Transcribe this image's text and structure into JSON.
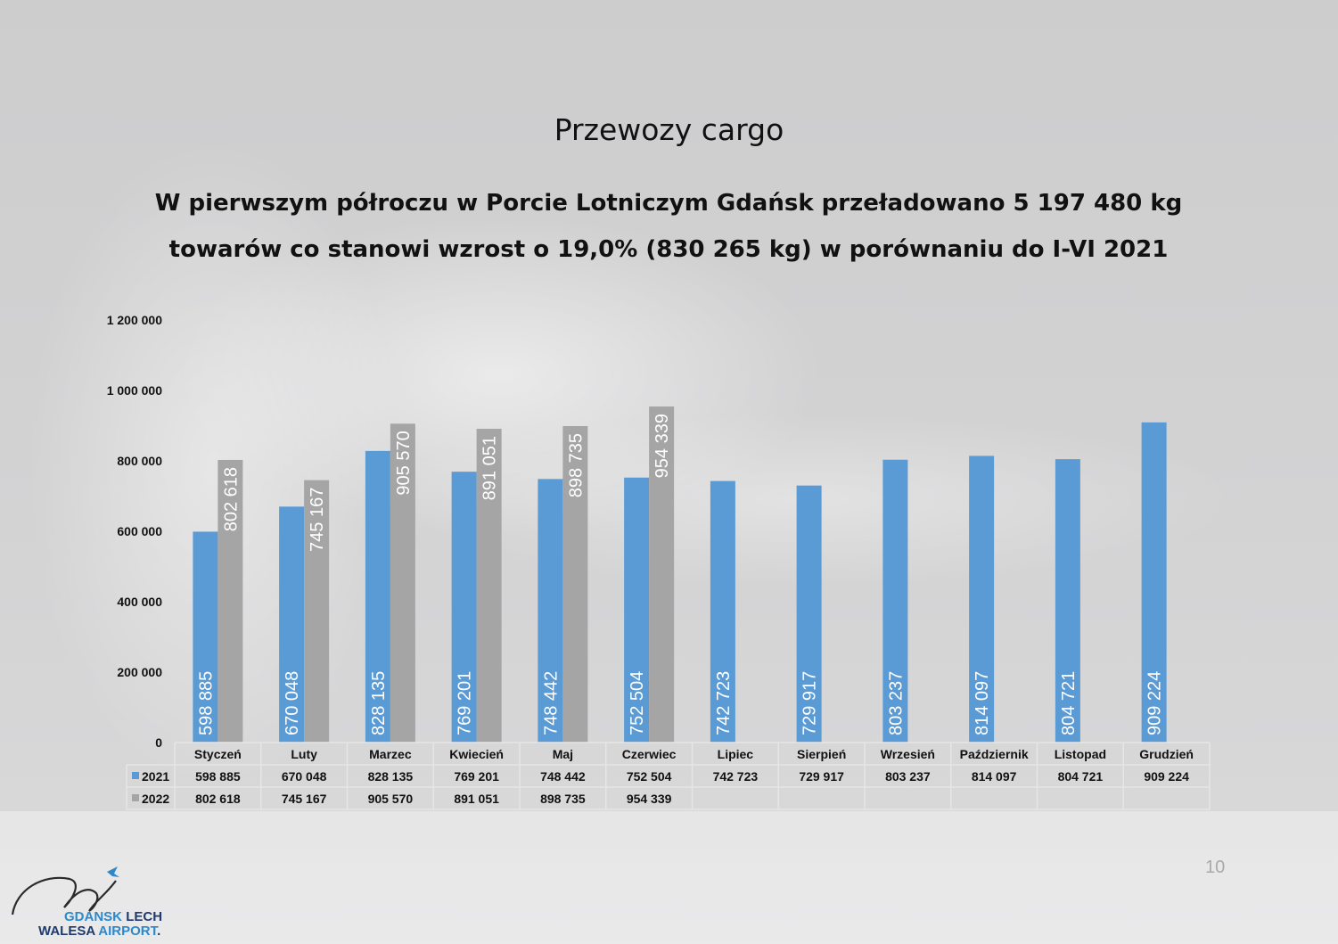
{
  "title": "Przewozy cargo",
  "subtitle": "W pierwszym półroczu w Porcie Lotniczym Gdańsk przeładowano 5 197 480 kg towarów co stanowi wzrost o 19,0% (830 265 kg) w porównaniu do I-VI 2021",
  "page_number": "10",
  "logo": {
    "word1": "GDANSK",
    "word2": "LECH",
    "word3": "WALESA",
    "word4": "AIRPORT",
    "word4_suffix": "."
  },
  "colors": {
    "series_2021": "#5b9bd5",
    "series_2022": "#a5a5a5"
  },
  "chart_data": {
    "type": "bar",
    "title": "",
    "xlabel": "",
    "ylabel": "",
    "ylim": [
      0,
      1200000
    ],
    "yticks": [
      0,
      200000,
      400000,
      600000,
      800000,
      1000000,
      1200000
    ],
    "ytick_labels": [
      "0",
      "200 000",
      "400 000",
      "600 000",
      "800 000",
      "1 000 000",
      "1 200 000"
    ],
    "grid": false,
    "legend": "data-table",
    "categories": [
      "Styczeń",
      "Luty",
      "Marzec",
      "Kwiecień",
      "Maj",
      "Czerwiec",
      "Lipiec",
      "Sierpień",
      "Wrzesień",
      "Październik",
      "Listopad",
      "Grudzień"
    ],
    "series": [
      {
        "name": "2021",
        "values": [
          598885,
          670048,
          828135,
          769201,
          748442,
          752504,
          742723,
          729917,
          803237,
          814097,
          804721,
          909224
        ],
        "labels": [
          "598 885",
          "670 048",
          "828 135",
          "769 201",
          "748 442",
          "752 504",
          "742 723",
          "729 917",
          "803 237",
          "814 097",
          "804 721",
          "909 224"
        ]
      },
      {
        "name": "2022",
        "values": [
          802618,
          745167,
          905570,
          891051,
          898735,
          954339,
          null,
          null,
          null,
          null,
          null,
          null
        ],
        "labels": [
          "802 618",
          "745 167",
          "905 570",
          "891 051",
          "898 735",
          "954 339",
          "",
          "",
          "",
          "",
          "",
          ""
        ]
      }
    ]
  }
}
